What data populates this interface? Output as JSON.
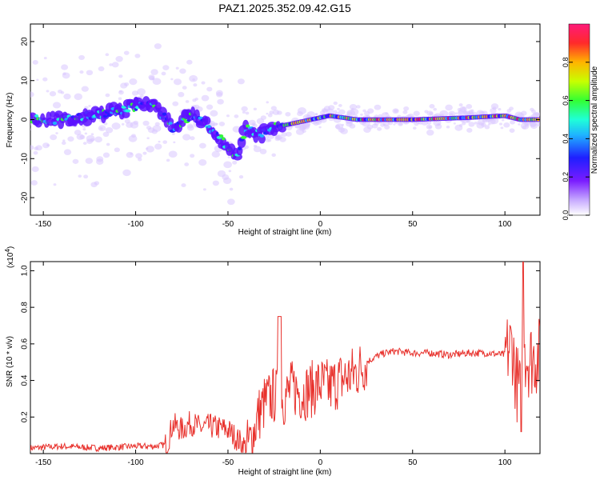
{
  "title": "PAZ1.2025.352.09.42.G15",
  "chart_data": [
    {
      "type": "heatmap",
      "xlabel": "Height of straight line (km)",
      "ylabel": "Frequency (Hz)",
      "xlim": [
        -157,
        119
      ],
      "ylim": [
        -24.5,
        24.5
      ],
      "xticks": [
        -150,
        -100,
        -50,
        0,
        50,
        100
      ],
      "yticks": [
        -20,
        -10,
        0,
        10,
        20
      ],
      "colorbar": {
        "label": "Normalized spectral amplitude",
        "range": [
          0,
          1
        ],
        "ticks": [
          "0.0",
          "0.2",
          "0.4",
          "0.6",
          "0.8"
        ]
      },
      "ridge": [
        {
          "x": -155,
          "y": 0
        },
        {
          "x": -140,
          "y": 0
        },
        {
          "x": -125,
          "y": 1
        },
        {
          "x": -110,
          "y": 2
        },
        {
          "x": -95,
          "y": 4
        },
        {
          "x": -90,
          "y": 4
        },
        {
          "x": -80,
          "y": -2
        },
        {
          "x": -70,
          "y": 1
        },
        {
          "x": -60,
          "y": -2
        },
        {
          "x": -52,
          "y": -6
        },
        {
          "x": -46,
          "y": -10
        },
        {
          "x": -40,
          "y": -2
        },
        {
          "x": -33,
          "y": -4
        },
        {
          "x": -25,
          "y": -2
        },
        {
          "x": -15,
          "y": -1
        },
        {
          "x": -5,
          "y": 0
        },
        {
          "x": 5,
          "y": 1
        },
        {
          "x": 20,
          "y": 0
        },
        {
          "x": 50,
          "y": 0
        },
        {
          "x": 80,
          "y": 0.5
        },
        {
          "x": 100,
          "y": 1
        },
        {
          "x": 108,
          "y": 0
        },
        {
          "x": 119,
          "y": 0
        }
      ]
    },
    {
      "type": "line",
      "xlabel": "Height of straight line (km)",
      "ylabel": "SNR (10 * v/v)",
      "yscale_label": "(x10",
      "yscale_exp": "4",
      "yscale_close": ")",
      "xlim": [
        -157,
        119
      ],
      "ylim": [
        0,
        1.05
      ],
      "xticks": [
        -150,
        -100,
        -50,
        0,
        50,
        100
      ],
      "yticks": [
        "0.2",
        "0.4",
        "0.6",
        "0.8",
        "1.0"
      ],
      "color": "#e8322d",
      "series": [
        {
          "x": [
            -157,
            -140,
            -120,
            -100,
            -90,
            -83,
            -80,
            -75,
            -70,
            -65,
            -60,
            -55,
            -50,
            -45,
            -40,
            -37,
            -34,
            -30,
            -25,
            -20,
            -15,
            -10,
            -5,
            0,
            5,
            10,
            15,
            20,
            25,
            30,
            35,
            40,
            50,
            60,
            70,
            80,
            90,
            100,
            104,
            106,
            108,
            109,
            110,
            111,
            113,
            116,
            119
          ],
          "y": [
            0.03,
            0.04,
            0.03,
            0.04,
            0.04,
            0.05,
            0.16,
            0.13,
            0.17,
            0.14,
            0.15,
            0.14,
            0.13,
            0.08,
            0.03,
            0.08,
            0.2,
            0.28,
            0.32,
            0.3,
            0.36,
            0.33,
            0.35,
            0.38,
            0.36,
            0.4,
            0.42,
            0.45,
            0.5,
            0.53,
            0.55,
            0.56,
            0.55,
            0.55,
            0.54,
            0.55,
            0.55,
            0.54,
            0.6,
            0.4,
            0.35,
            0.2,
            0.9,
            0.55,
            0.52,
            0.53,
            0.53
          ]
        }
      ]
    }
  ]
}
